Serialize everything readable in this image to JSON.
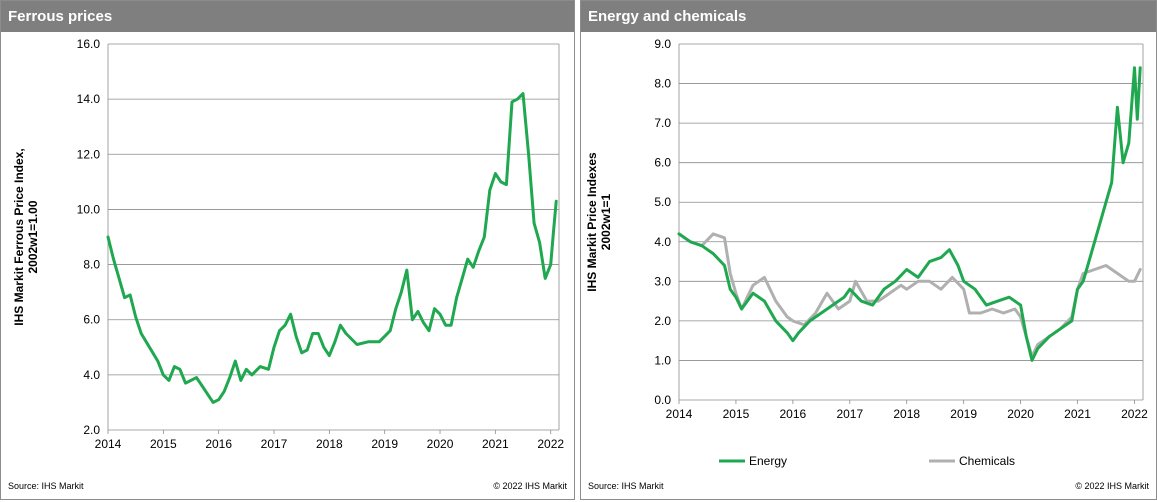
{
  "panels": {
    "left": {
      "title": "Ferrous prices",
      "source": "Source:  IHS Markit",
      "copyright": "© 2022  IHS Markit"
    },
    "right": {
      "title": "Energy and chemicals",
      "source": "Source:  IHS Markit",
      "copyright": "© 2022  IHS Markit"
    }
  },
  "chart_data": [
    {
      "type": "line",
      "title": "Ferrous prices",
      "ylabel": [
        "IHS Markit Ferrous Price Index,",
        "2002w1=1.00"
      ],
      "xlabel": "",
      "xlim": [
        2014,
        2022.15
      ],
      "ylim": [
        2,
        16
      ],
      "yticks": [
        "2.0",
        "4.0",
        "6.0",
        "8.0",
        "10.0",
        "12.0",
        "14.0",
        "16.0"
      ],
      "xticks": [
        "2014",
        "2015",
        "2016",
        "2017",
        "2018",
        "2019",
        "2020",
        "2021",
        "2022"
      ],
      "grid": true,
      "legend": "none",
      "series": [
        {
          "color": "#1fa84f",
          "x": [
            2014.0,
            2014.1,
            2014.2,
            2014.3,
            2014.4,
            2014.5,
            2014.6,
            2014.75,
            2014.9,
            2015.0,
            2015.1,
            2015.2,
            2015.3,
            2015.4,
            2015.5,
            2015.6,
            2015.7,
            2015.8,
            2015.9,
            2016.0,
            2016.1,
            2016.2,
            2016.3,
            2016.4,
            2016.5,
            2016.6,
            2016.75,
            2016.9,
            2017.0,
            2017.1,
            2017.2,
            2017.3,
            2017.4,
            2017.5,
            2017.6,
            2017.7,
            2017.8,
            2017.9,
            2018.0,
            2018.1,
            2018.2,
            2018.3,
            2018.5,
            2018.7,
            2018.9,
            2019.0,
            2019.1,
            2019.2,
            2019.3,
            2019.4,
            2019.5,
            2019.6,
            2019.7,
            2019.8,
            2019.9,
            2020.0,
            2020.1,
            2020.2,
            2020.3,
            2020.4,
            2020.5,
            2020.6,
            2020.7,
            2020.8,
            2020.9,
            2021.0,
            2021.1,
            2021.2,
            2021.3,
            2021.4,
            2021.5,
            2021.6,
            2021.7,
            2021.8,
            2021.9,
            2022.0,
            2022.05,
            2022.1
          ],
          "values": [
            9.0,
            8.2,
            7.5,
            6.8,
            6.9,
            6.1,
            5.5,
            5.0,
            4.5,
            4.0,
            3.8,
            4.3,
            4.2,
            3.7,
            3.8,
            3.9,
            3.6,
            3.3,
            3.0,
            3.1,
            3.4,
            3.9,
            4.5,
            3.8,
            4.2,
            4.0,
            4.3,
            4.2,
            5.0,
            5.6,
            5.8,
            6.2,
            5.4,
            4.8,
            4.9,
            5.5,
            5.5,
            5.0,
            4.7,
            5.2,
            5.8,
            5.5,
            5.1,
            5.2,
            5.2,
            5.4,
            5.6,
            6.4,
            7.0,
            7.8,
            6.0,
            6.3,
            5.9,
            5.6,
            6.4,
            6.2,
            5.8,
            5.8,
            6.8,
            7.5,
            8.2,
            7.9,
            8.5,
            9.0,
            10.7,
            11.3,
            11.0,
            10.9,
            13.9,
            14.0,
            14.2,
            12.0,
            9.5,
            8.8,
            7.5,
            8.0,
            9.2,
            10.3
          ]
        }
      ]
    },
    {
      "type": "line",
      "title": "Energy and chemicals",
      "ylabel": [
        "IHS Markit Price Indexes",
        "2002w1=1"
      ],
      "xlabel": "",
      "xlim": [
        2014,
        2022.15
      ],
      "ylim": [
        0,
        9
      ],
      "yticks": [
        "0.0",
        "1.0",
        "2.0",
        "3.0",
        "4.0",
        "5.0",
        "6.0",
        "7.0",
        "8.0",
        "9.0"
      ],
      "xticks": [
        "2014",
        "2015",
        "2016",
        "2017",
        "2018",
        "2019",
        "2020",
        "2021",
        "2022"
      ],
      "grid": true,
      "legend": "bottom",
      "series": [
        {
          "name": "Energy",
          "color": "#1fa84f",
          "x": [
            2014.0,
            2014.2,
            2014.4,
            2014.6,
            2014.8,
            2014.9,
            2015.0,
            2015.1,
            2015.3,
            2015.5,
            2015.7,
            2015.9,
            2016.0,
            2016.1,
            2016.3,
            2016.5,
            2016.7,
            2016.9,
            2017.0,
            2017.2,
            2017.4,
            2017.6,
            2017.8,
            2018.0,
            2018.2,
            2018.4,
            2018.6,
            2018.75,
            2018.9,
            2019.0,
            2019.2,
            2019.4,
            2019.6,
            2019.8,
            2020.0,
            2020.1,
            2020.2,
            2020.3,
            2020.5,
            2020.7,
            2020.9,
            2021.0,
            2021.1,
            2021.3,
            2021.5,
            2021.6,
            2021.7,
            2021.8,
            2021.9,
            2022.0,
            2022.05,
            2022.1
          ],
          "values": [
            4.2,
            4.0,
            3.9,
            3.7,
            3.4,
            2.8,
            2.6,
            2.3,
            2.7,
            2.5,
            2.0,
            1.7,
            1.5,
            1.7,
            2.0,
            2.2,
            2.4,
            2.6,
            2.8,
            2.5,
            2.4,
            2.8,
            3.0,
            3.3,
            3.1,
            3.5,
            3.6,
            3.8,
            3.4,
            3.0,
            2.8,
            2.4,
            2.5,
            2.6,
            2.4,
            1.6,
            1.0,
            1.3,
            1.6,
            1.8,
            2.0,
            2.8,
            3.0,
            4.0,
            5.0,
            5.5,
            7.4,
            6.0,
            6.5,
            8.4,
            7.1,
            8.4
          ]
        },
        {
          "name": "Chemicals",
          "color": "#b0b0b0",
          "x": [
            2014.0,
            2014.2,
            2014.4,
            2014.6,
            2014.8,
            2014.9,
            2015.0,
            2015.1,
            2015.3,
            2015.5,
            2015.7,
            2015.9,
            2016.0,
            2016.2,
            2016.4,
            2016.6,
            2016.8,
            2017.0,
            2017.1,
            2017.3,
            2017.5,
            2017.7,
            2017.9,
            2018.0,
            2018.2,
            2018.4,
            2018.6,
            2018.8,
            2019.0,
            2019.1,
            2019.3,
            2019.5,
            2019.7,
            2019.9,
            2020.0,
            2020.1,
            2020.2,
            2020.3,
            2020.5,
            2020.7,
            2020.9,
            2021.0,
            2021.1,
            2021.3,
            2021.5,
            2021.7,
            2021.9,
            2022.0,
            2022.1
          ],
          "values": [
            4.2,
            4.0,
            3.9,
            4.2,
            4.1,
            3.2,
            2.7,
            2.3,
            2.9,
            3.1,
            2.5,
            2.1,
            2.0,
            1.9,
            2.2,
            2.7,
            2.3,
            2.5,
            3.0,
            2.5,
            2.5,
            2.7,
            2.9,
            2.8,
            3.0,
            3.0,
            2.8,
            3.1,
            2.8,
            2.2,
            2.2,
            2.3,
            2.2,
            2.3,
            2.1,
            1.6,
            1.1,
            1.4,
            1.6,
            1.8,
            2.1,
            2.8,
            3.2,
            3.3,
            3.4,
            3.2,
            3.0,
            3.0,
            3.3
          ]
        }
      ]
    }
  ]
}
